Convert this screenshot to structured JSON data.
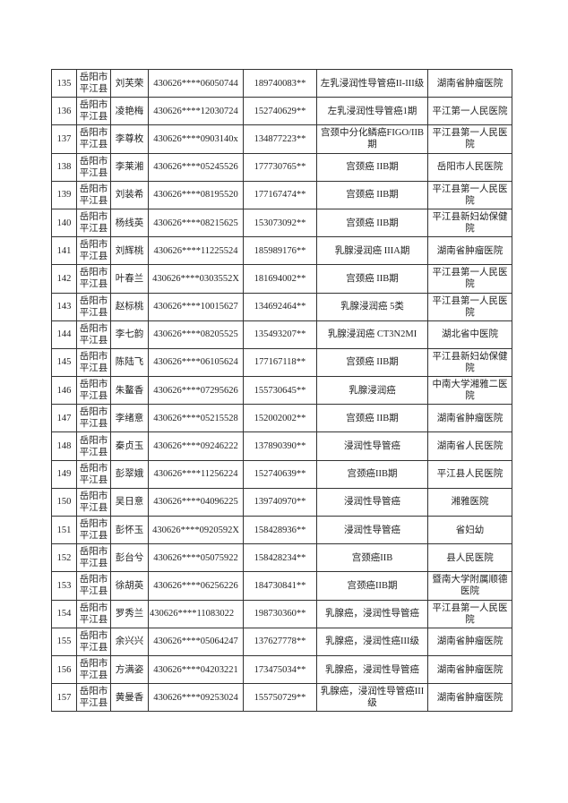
{
  "table": {
    "rows": [
      {
        "no": "135",
        "region": "岳阳市平江县",
        "name": "刘芙荣",
        "id": "430626****06050744",
        "phone": "189740083**",
        "diagnosis": "左乳浸润性导管癌II-III级",
        "hospital": "湖南省肿瘤医院"
      },
      {
        "no": "136",
        "region": "岳阳市平江县",
        "name": "凌艳梅",
        "id": "430626****12030724",
        "phone": "152740629**",
        "diagnosis": "左乳浸润性导管癌1期",
        "hospital": "平江第一人民医院"
      },
      {
        "no": "137",
        "region": "岳阳市平江县",
        "name": "李尊枚",
        "id": "430626****0903140x",
        "phone": "134877223**",
        "diagnosis": "宫颈中分化鳞癌FIGO/IIB期",
        "hospital": "平江县第一人民医院"
      },
      {
        "no": "138",
        "region": "岳阳市平江县",
        "name": "李莱湘",
        "id": "430626****05245526",
        "phone": "177730765**",
        "diagnosis": "宫颈癌 IIB期",
        "hospital": "岳阳市人民医院"
      },
      {
        "no": "139",
        "region": "岳阳市平江县",
        "name": "刘装希",
        "id": "430626****08195520",
        "phone": "177167474**",
        "diagnosis": "宫颈癌 IIB期",
        "hospital": "平江县第一人民医院"
      },
      {
        "no": "140",
        "region": "岳阳市平江县",
        "name": "杨线英",
        "id": "430626****08215625",
        "phone": "153073092**",
        "diagnosis": "宫颈癌 IIB期",
        "hospital": "平江县新妇幼保健院"
      },
      {
        "no": "141",
        "region": "岳阳市平江县",
        "name": "刘辉桃",
        "id": "430626****11225524",
        "phone": "185989176**",
        "diagnosis": "乳腺浸润癌 IIIA期",
        "hospital": "湖南省肿瘤医院"
      },
      {
        "no": "142",
        "region": "岳阳市平江县",
        "name": "叶春兰",
        "id": "430626****0303552X",
        "phone": "181694002**",
        "diagnosis": "宫颈癌 IIB期",
        "hospital": "平江县第一人民医院"
      },
      {
        "no": "143",
        "region": "岳阳市平江县",
        "name": "赵标桃",
        "id": "430626****10015627",
        "phone": "134692464**",
        "diagnosis": "乳腺浸润癌 5类",
        "hospital": "平江县第一人民医院"
      },
      {
        "no": "144",
        "region": "岳阳市平江县",
        "name": "李七韵",
        "id": "430626****08205525",
        "phone": "135493207**",
        "diagnosis": "乳腺浸润癌 CT3N2MI",
        "hospital": "湖北省中医院"
      },
      {
        "no": "145",
        "region": "岳阳市平江县",
        "name": "陈陆飞",
        "id": "430626****06105624",
        "phone": "177167118**",
        "diagnosis": "宫颈癌 IIB期",
        "hospital": "平江县新妇幼保健院"
      },
      {
        "no": "146",
        "region": "岳阳市平江县",
        "name": "朱鳌香",
        "id": "430626****07295626",
        "phone": "155730645**",
        "diagnosis": "乳腺浸润癌",
        "hospital": "中南大学湘雅二医院"
      },
      {
        "no": "147",
        "region": "岳阳市平江县",
        "name": "李绪意",
        "id": "430626****05215528",
        "phone": "152002002**",
        "diagnosis": "宫颈癌 IIB期",
        "hospital": "湖南省肿瘤医院"
      },
      {
        "no": "148",
        "region": "岳阳市平江县",
        "name": "秦贞玉",
        "id": "430626****09246222",
        "phone": "137890390**",
        "diagnosis": "浸润性导管癌",
        "hospital": "湖南省人民医院"
      },
      {
        "no": "149",
        "region": "岳阳市平江县",
        "name": "彭翠娥",
        "id": "430626****11256224",
        "phone": "152740639**",
        "diagnosis": "宫颈癌IIB期",
        "hospital": "平江县人民医院"
      },
      {
        "no": "150",
        "region": "岳阳市平江县",
        "name": "吴日意",
        "id": "430626****04096225",
        "phone": "139740970**",
        "diagnosis": "浸润性导管癌",
        "hospital": "湘雅医院"
      },
      {
        "no": "151",
        "region": "岳阳市平江县",
        "name": "彭怀玉",
        "id": "430626****0920592X",
        "phone": "158428936**",
        "diagnosis": "浸润性导管癌",
        "hospital": "省妇幼"
      },
      {
        "no": "152",
        "region": "岳阳市平江县",
        "name": "彭台兮",
        "id": "430626****05075922",
        "phone": "158428234**",
        "diagnosis": "宫颈癌IIB",
        "hospital": "县人民医院"
      },
      {
        "no": "153",
        "region": "岳阳市平江县",
        "name": "徐胡英",
        "id": "430626****06256226",
        "phone": "184730841**",
        "diagnosis": "宫颈癌IIB期",
        "hospital": "暨南大学附属顺德医院"
      },
      {
        "no": "154",
        "region": "岳阳市平江县",
        "name": "罗秀兰",
        "id": "430626****11083022",
        "phone": "198730360**",
        "diagnosis": "乳腺癌，浸润性导管癌",
        "hospital": "平江县第一人民医院"
      },
      {
        "no": "155",
        "region": "岳阳市平江县",
        "name": "余兴兴",
        "id": "430626****05064247",
        "phone": "137627778**",
        "diagnosis": "乳腺癌，浸润性癌III级",
        "hospital": "湖南省肿瘤医院"
      },
      {
        "no": "156",
        "region": "岳阳市平江县",
        "name": "方满姿",
        "id": "430626****04203221",
        "phone": "173475034**",
        "diagnosis": "乳腺癌，浸润性导管癌",
        "hospital": "湖南省肿瘤医院"
      },
      {
        "no": "157",
        "region": "岳阳市平江县",
        "name": "黄曼香",
        "id": "430626****09253024",
        "phone": "155750729**",
        "diagnosis": "乳腺癌，浸润性导管癌III级",
        "hospital": "湖南省肿瘤医院"
      }
    ]
  }
}
